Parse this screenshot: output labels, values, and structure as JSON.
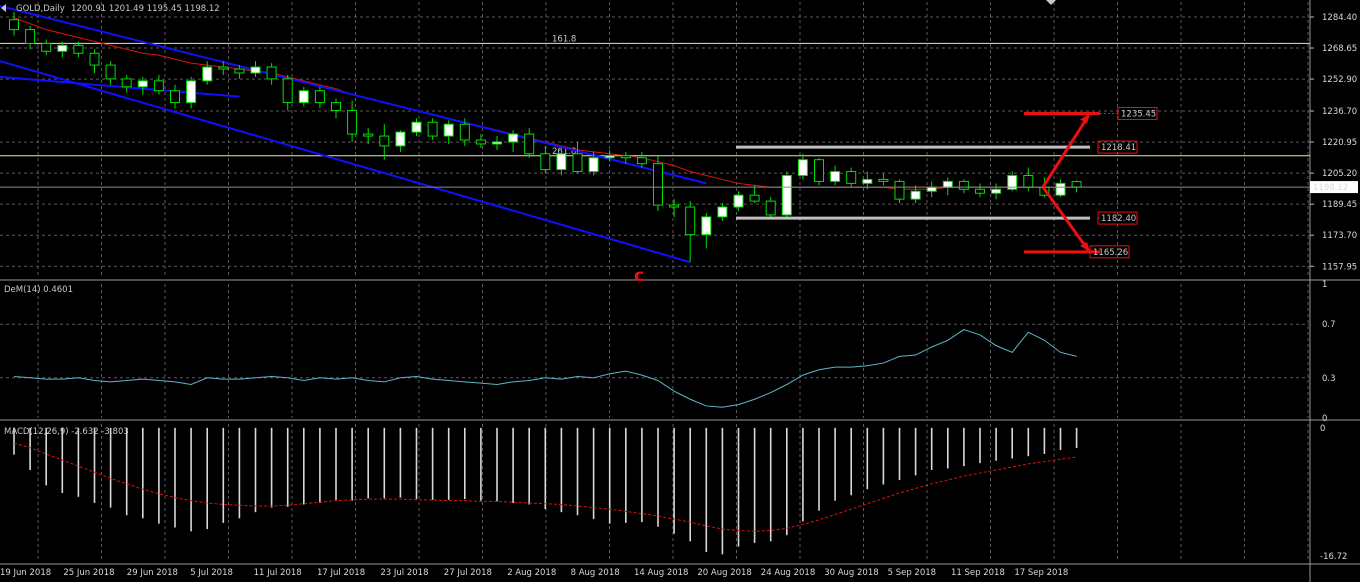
{
  "header": {
    "symbol_label": "GOLD,Daily",
    "ohlc_label": "1200.91 1201.49 1195.45 1198.12"
  },
  "colors": {
    "background": "#000000",
    "grid": "#5a5a5a",
    "bull_candle": "#ffffff",
    "bear_candle": "#000000",
    "candle_outline": "#00e000",
    "channel": "#1010ff",
    "moving_average": "#e01010",
    "fib_line": "#e8e8a0",
    "range_line": "#c0c0c0",
    "target": "#e81010",
    "dem_line": "#5fb6c8",
    "macd_hist": "#d8d8d8",
    "macd_signal": "#e01010",
    "price_tag": "#ffffff"
  },
  "chart_data": [
    {
      "type": "candlestick",
      "title": "GOLD,Daily",
      "ylim": [
        1152,
        1292
      ],
      "y_ticks": [
        "1284.40",
        "1268.65",
        "1252.90",
        "1236.70",
        "1220.95",
        "1205.20",
        "1189.45",
        "1173.70",
        "1157.95"
      ],
      "x_tick_labels": [
        "19 Jun 2018",
        "25 Jun 2018",
        "29 Jun 2018",
        "5 Jul 2018",
        "11 Jul 2018",
        "17 Jul 2018",
        "23 Jul 2018",
        "27 Jul 2018",
        "2 Aug 2018",
        "8 Aug 2018",
        "14 Aug 2018",
        "20 Aug 2018",
        "24 Aug 2018",
        "30 Aug 2018",
        "5 Sep 2018",
        "11 Sep 2018",
        "17 Sep 2018"
      ],
      "current_price_label": "1198.12",
      "candles": [
        [
          1283,
          1287,
          1275,
          1278
        ],
        [
          1278,
          1280,
          1268,
          1271
        ],
        [
          1271,
          1273,
          1265,
          1267
        ],
        [
          1267,
          1272,
          1264,
          1270
        ],
        [
          1270,
          1272,
          1264,
          1266
        ],
        [
          1266,
          1268,
          1256,
          1260
        ],
        [
          1260,
          1262,
          1250,
          1253
        ],
        [
          1253,
          1255,
          1246,
          1249
        ],
        [
          1249,
          1254,
          1245,
          1252
        ],
        [
          1252,
          1255,
          1245,
          1247
        ],
        [
          1247,
          1250,
          1238,
          1241
        ],
        [
          1241,
          1254,
          1238,
          1252
        ],
        [
          1252,
          1262,
          1250,
          1259
        ],
        [
          1259,
          1262,
          1255,
          1258
        ],
        [
          1258,
          1260,
          1253,
          1256
        ],
        [
          1256,
          1262,
          1254,
          1259
        ],
        [
          1259,
          1261,
          1250,
          1253
        ],
        [
          1253,
          1255,
          1237,
          1241
        ],
        [
          1241,
          1249,
          1239,
          1247
        ],
        [
          1247,
          1249,
          1238,
          1241
        ],
        [
          1241,
          1243,
          1233,
          1237
        ],
        [
          1237,
          1242,
          1221,
          1225
        ],
        [
          1225,
          1228,
          1220,
          1224
        ],
        [
          1224,
          1230,
          1212,
          1219
        ],
        [
          1219,
          1227,
          1216,
          1226
        ],
        [
          1226,
          1233,
          1224,
          1231
        ],
        [
          1231,
          1233,
          1222,
          1224
        ],
        [
          1224,
          1232,
          1220,
          1230
        ],
        [
          1230,
          1233,
          1219,
          1222
        ],
        [
          1222,
          1225,
          1218,
          1220
        ],
        [
          1220,
          1224,
          1217,
          1221
        ],
        [
          1221,
          1227,
          1216,
          1225
        ],
        [
          1225,
          1228,
          1213,
          1215
        ],
        [
          1215,
          1219,
          1205,
          1207
        ],
        [
          1207,
          1218,
          1204,
          1215
        ],
        [
          1215,
          1221,
          1205,
          1206
        ],
        [
          1206,
          1216,
          1204,
          1213
        ],
        [
          1213,
          1217,
          1211,
          1214
        ],
        [
          1214,
          1216,
          1210,
          1213
        ],
        [
          1213,
          1216,
          1208,
          1210
        ],
        [
          1210,
          1214,
          1186,
          1189
        ],
        [
          1189,
          1192,
          1183,
          1188
        ],
        [
          1188,
          1191,
          1160,
          1174
        ],
        [
          1174,
          1185,
          1167,
          1183
        ],
        [
          1183,
          1190,
          1181,
          1188
        ],
        [
          1188,
          1196,
          1186,
          1194
        ],
        [
          1194,
          1199,
          1190,
          1191
        ],
        [
          1191,
          1193,
          1183,
          1184
        ],
        [
          1184,
          1206,
          1183,
          1204
        ],
        [
          1204,
          1215,
          1202,
          1212
        ],
        [
          1212,
          1213,
          1199,
          1201
        ],
        [
          1201,
          1209,
          1199,
          1206
        ],
        [
          1206,
          1208,
          1198,
          1200
        ],
        [
          1200,
          1206,
          1197,
          1202
        ],
        [
          1202,
          1205,
          1199,
          1201
        ],
        [
          1201,
          1202,
          1190,
          1192
        ],
        [
          1192,
          1199,
          1190,
          1196
        ],
        [
          1196,
          1201,
          1193,
          1198
        ],
        [
          1198,
          1203,
          1194,
          1201
        ],
        [
          1201,
          1202,
          1195,
          1197
        ],
        [
          1197,
          1200,
          1193,
          1195
        ],
        [
          1195,
          1200,
          1192,
          1197
        ],
        [
          1197,
          1206,
          1196,
          1204
        ],
        [
          1204,
          1208,
          1196,
          1198
        ],
        [
          1198,
          1203,
          1193,
          1194
        ],
        [
          1194,
          1202,
          1193,
          1200
        ],
        [
          1200.91,
          1201.49,
          1195.45,
          1198.12
        ]
      ],
      "moving_average": [
        1284,
        1281,
        1278,
        1276,
        1274,
        1272,
        1270,
        1268,
        1266,
        1265,
        1263,
        1261,
        1260,
        1259,
        1258,
        1257,
        1256,
        1254,
        1252,
        1250,
        1248,
        1245,
        1243,
        1241,
        1239,
        1237,
        1235,
        1233,
        1231,
        1229,
        1227,
        1225,
        1223,
        1221,
        1219,
        1217,
        1216,
        1215,
        1214,
        1213,
        1211,
        1209,
        1206,
        1204,
        1202,
        1200,
        1199,
        1198,
        1198,
        1198,
        1198,
        1198,
        1198,
        1198,
        1198,
        1197,
        1197,
        1197,
        1198,
        1198,
        1198,
        1198,
        1198,
        1198,
        1198,
        1198,
        1198
      ],
      "fib_levels": [
        {
          "label": "161.8",
          "price": 1271
        },
        {
          "label": "261.8",
          "price": 1214
        }
      ],
      "channel_lines": [
        {
          "from": [
            0,
            1290
          ],
          "to": [
            43,
            1200
          ]
        },
        {
          "from": [
            0,
            1262
          ],
          "to": [
            42,
            1160
          ]
        },
        {
          "from": [
            0,
            1254
          ],
          "to": [
            14,
            1244
          ]
        }
      ],
      "range_lines": [
        {
          "price": 1218.41,
          "from": 46,
          "to": 68
        },
        {
          "price": 1182.4,
          "from": 46,
          "to": 68
        }
      ],
      "projections": [
        {
          "price": 1235.45,
          "label": "1235.45"
        },
        {
          "price": 1218.41,
          "label": "1218.41"
        },
        {
          "price": 1182.4,
          "label": "1182.40"
        },
        {
          "price": 1165.26,
          "label": "1165.26"
        }
      ],
      "wave_label": "c"
    },
    {
      "type": "line",
      "title": "DeM(14) 0.4601",
      "ylim": [
        0,
        1
      ],
      "y_ticks": [
        "1",
        "0.7",
        "0.3",
        "0"
      ],
      "values": [
        0.31,
        0.3,
        0.29,
        0.29,
        0.3,
        0.28,
        0.27,
        0.28,
        0.29,
        0.28,
        0.27,
        0.25,
        0.3,
        0.29,
        0.29,
        0.3,
        0.31,
        0.3,
        0.28,
        0.3,
        0.29,
        0.3,
        0.28,
        0.27,
        0.3,
        0.31,
        0.29,
        0.28,
        0.27,
        0.26,
        0.25,
        0.27,
        0.28,
        0.3,
        0.29,
        0.31,
        0.3,
        0.33,
        0.35,
        0.32,
        0.28,
        0.2,
        0.14,
        0.09,
        0.08,
        0.1,
        0.14,
        0.19,
        0.25,
        0.32,
        0.36,
        0.38,
        0.38,
        0.39,
        0.41,
        0.46,
        0.47,
        0.53,
        0.58,
        0.66,
        0.62,
        0.54,
        0.49,
        0.64,
        0.58,
        0.49,
        0.46
      ]
    },
    {
      "type": "bar",
      "title": "MACD(12,26,9) -2.632 -3.803",
      "ylim": [
        -17.5,
        0.5
      ],
      "y_ticks": [
        "0",
        "-16.72"
      ],
      "values": [
        -3.5,
        -5.5,
        -7.5,
        -8.5,
        -9.0,
        -9.8,
        -10.4,
        -11.4,
        -11.8,
        -12.5,
        -13.0,
        -13.5,
        -13.2,
        -12.4,
        -11.8,
        -11.0,
        -10.4,
        -10.3,
        -10.0,
        -9.8,
        -9.4,
        -9.5,
        -9.2,
        -9.2,
        -9.1,
        -9.3,
        -9.4,
        -9.4,
        -9.3,
        -9.5,
        -9.6,
        -9.8,
        -10.0,
        -10.6,
        -11.0,
        -11.4,
        -11.9,
        -12.5,
        -12.4,
        -12.3,
        -12.9,
        -13.8,
        -14.8,
        -16.2,
        -16.5,
        -15.5,
        -15.0,
        -14.8,
        -14.0,
        -12.2,
        -10.8,
        -9.5,
        -8.8,
        -8.0,
        -7.4,
        -6.8,
        -6.2,
        -5.5,
        -5.3,
        -5.0,
        -4.6,
        -4.3,
        -4.0,
        -3.7,
        -3.4,
        -2.9,
        -2.63
      ],
      "signal": [
        -2.0,
        -2.6,
        -3.4,
        -4.2,
        -5.0,
        -5.8,
        -6.6,
        -7.3,
        -8.0,
        -8.6,
        -9.1,
        -9.5,
        -9.8,
        -10.0,
        -10.1,
        -10.2,
        -10.2,
        -10.1,
        -9.9,
        -9.7,
        -9.5,
        -9.4,
        -9.3,
        -9.3,
        -9.3,
        -9.4,
        -9.4,
        -9.5,
        -9.5,
        -9.6,
        -9.6,
        -9.7,
        -9.8,
        -9.9,
        -10.0,
        -10.2,
        -10.4,
        -10.6,
        -10.9,
        -11.2,
        -11.5,
        -11.9,
        -12.3,
        -12.8,
        -13.2,
        -13.4,
        -13.5,
        -13.4,
        -13.1,
        -12.6,
        -12.0,
        -11.3,
        -10.6,
        -9.9,
        -9.2,
        -8.5,
        -7.9,
        -7.3,
        -6.8,
        -6.3,
        -5.9,
        -5.5,
        -5.1,
        -4.7,
        -4.4,
        -4.1,
        -3.8
      ]
    }
  ]
}
